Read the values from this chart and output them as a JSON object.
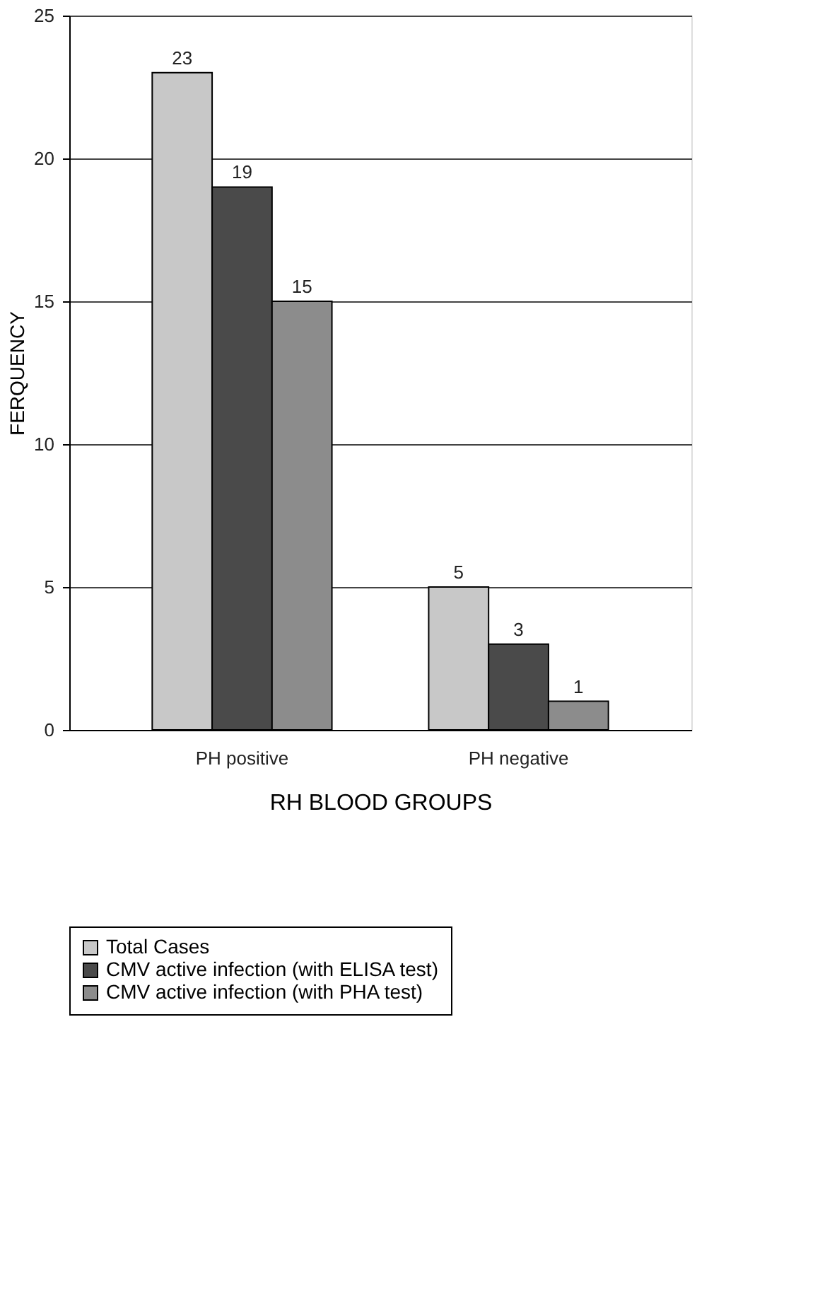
{
  "chart_data": {
    "type": "bar",
    "xlabel": "RH BLOOD GROUPS",
    "ylabel": "FERQUENCY",
    "categories": [
      "PH positive",
      "PH negative"
    ],
    "series": [
      {
        "name": "Total Cases",
        "color": "#c8c8c8",
        "values": [
          23,
          5
        ]
      },
      {
        "name": "CMV active infection (with ELISA test)",
        "color": "#4a4a4a",
        "values": [
          19,
          3
        ]
      },
      {
        "name": "CMV active infection (with PHA test)",
        "color": "#8c8c8c",
        "values": [
          15,
          1
        ]
      }
    ],
    "ylim": [
      0,
      25
    ],
    "yticks": [
      0,
      5,
      10,
      15,
      20,
      25
    ],
    "grid": "y",
    "data_labels": true,
    "legend": "bottom"
  }
}
